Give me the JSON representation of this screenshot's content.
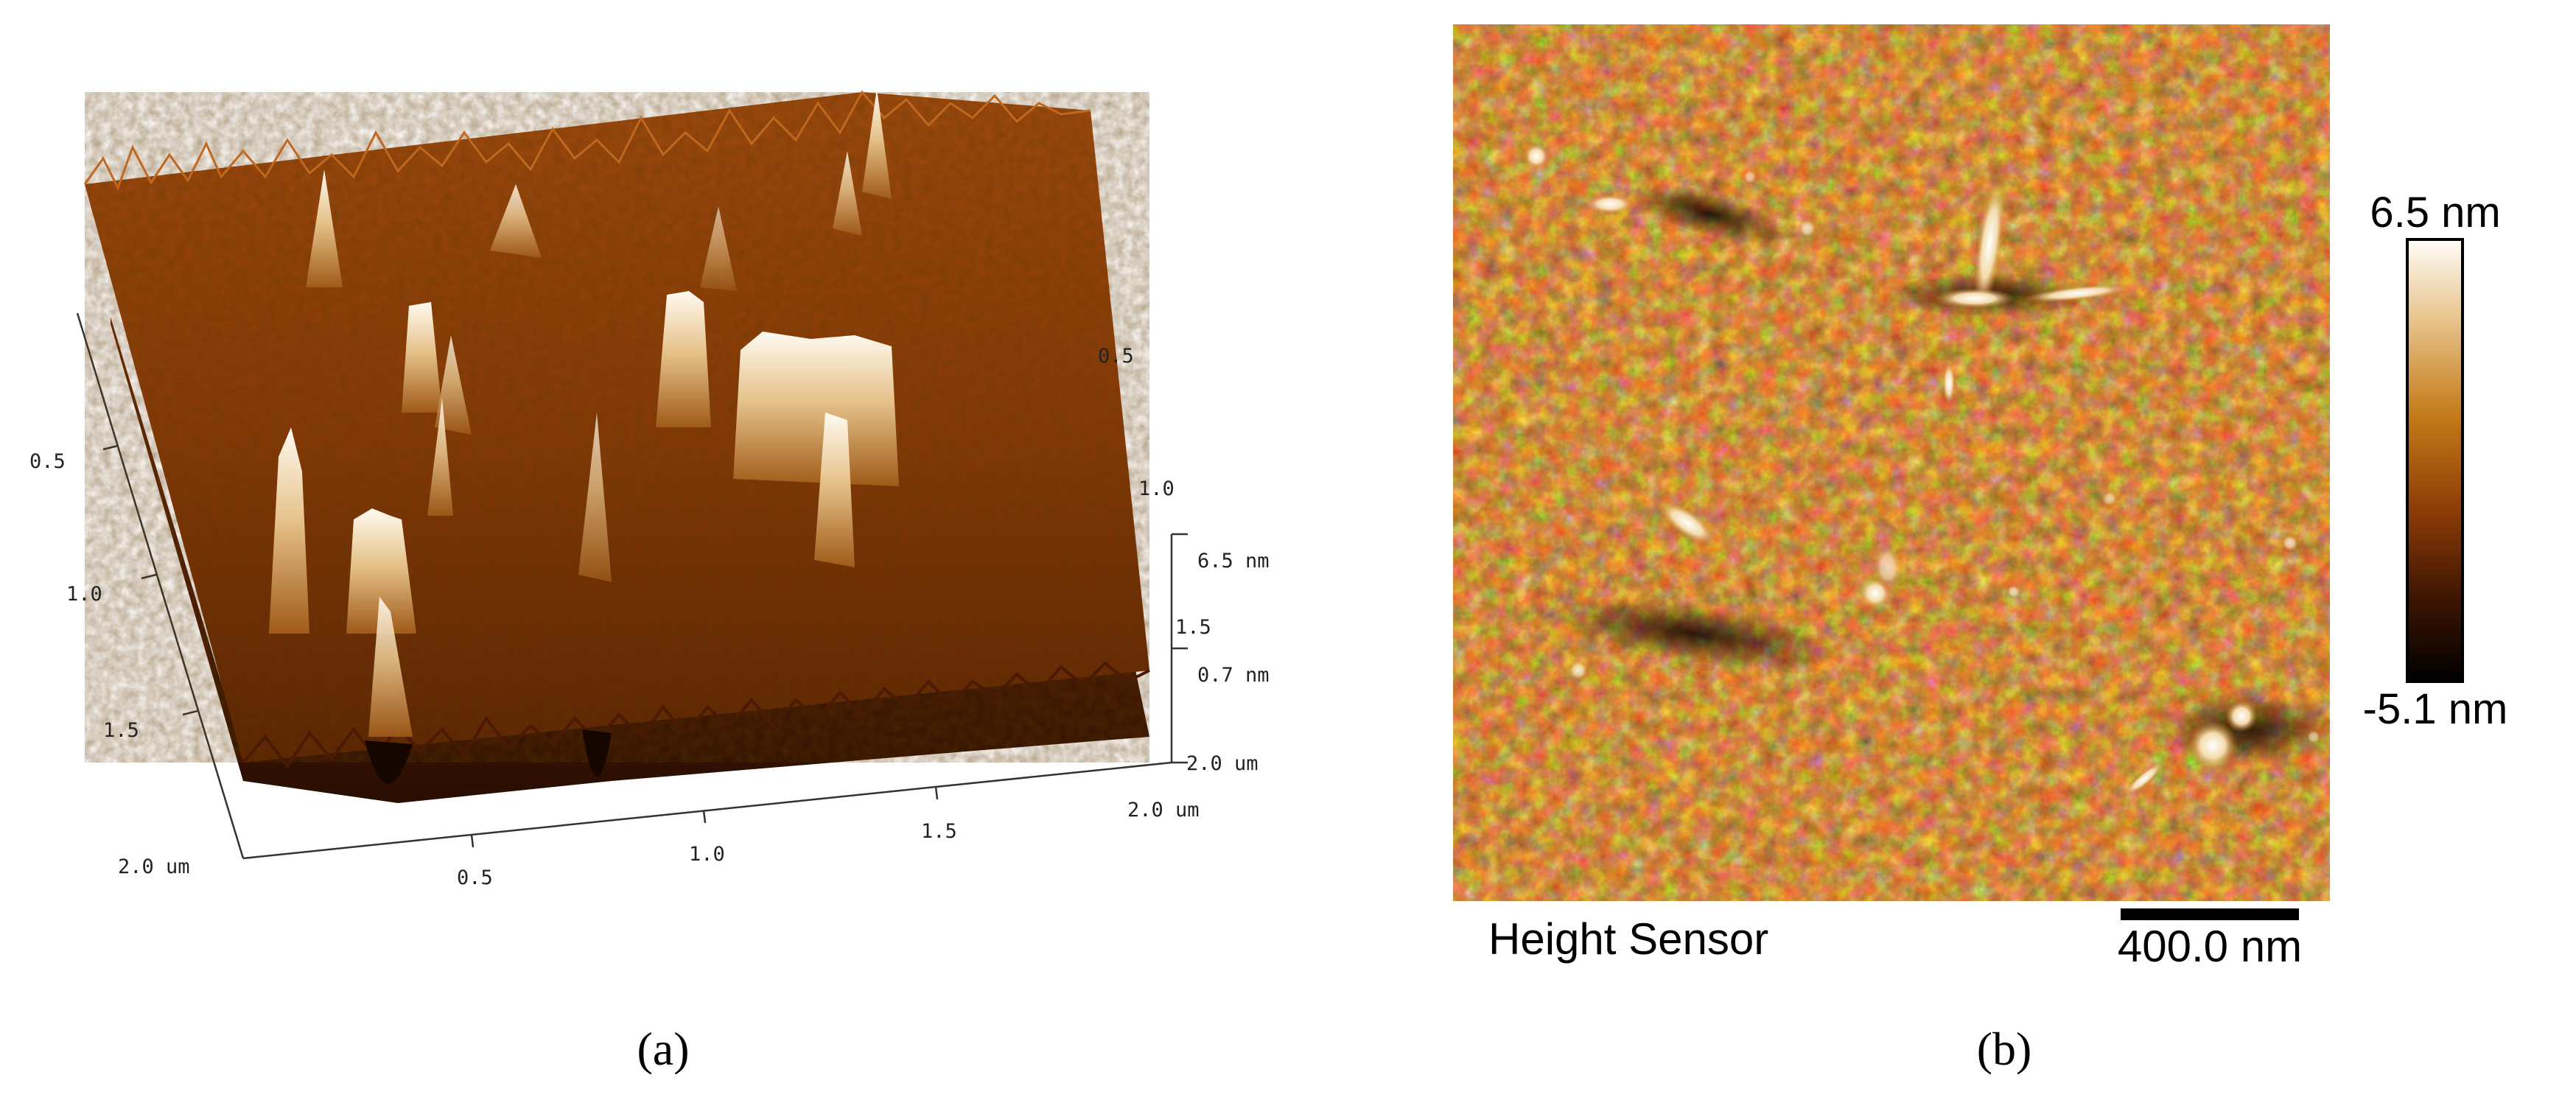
{
  "panel_a": {
    "caption": "(a)",
    "x_axis_ticks": [
      "0.5",
      "1.0",
      "1.5",
      "2.0 um"
    ],
    "y_axis_ticks": [
      "0.5",
      "1.0",
      "1.5",
      "2.0 um"
    ],
    "right_axis_ticks": [
      "0.5",
      "1.0",
      "1.5",
      "2.0 um"
    ],
    "z_axis_labels": [
      "6.5 nm",
      "0.7 nm"
    ]
  },
  "panel_b": {
    "caption": "(b)",
    "channel_label": "Height Sensor",
    "scale_bar_label": "400.0 nm",
    "colorbar_max": "6.5 nm",
    "colorbar_min": "-5.1 nm"
  },
  "colors": {
    "afm_dark": "#1a0800",
    "afm_mid": "#8a3a08",
    "afm_light": "#d08830",
    "afm_white": "#fff6e6"
  }
}
